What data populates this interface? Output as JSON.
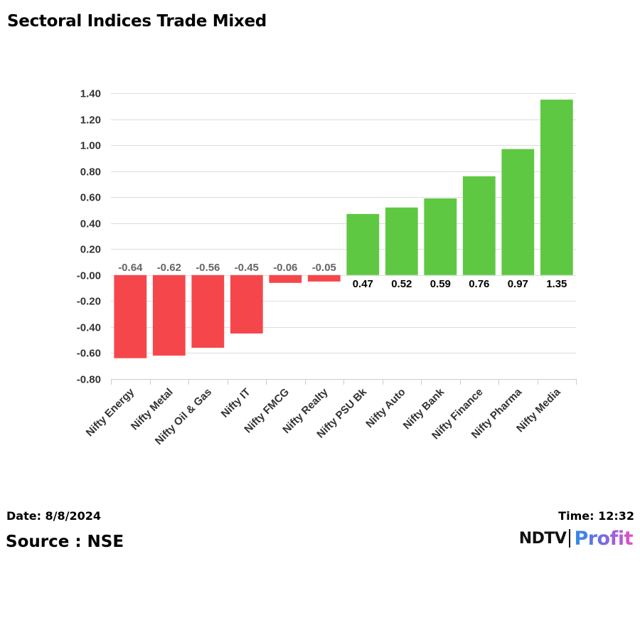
{
  "title": "Sectoral Indices Trade Mixed",
  "footer": {
    "date": "Date: 8/8/2024",
    "time": "Time: 12:32",
    "source": "Source : NSE"
  },
  "logo": {
    "brand": "NDTV",
    "sub": "Profit"
  },
  "colors": {
    "negative": "#f5474b",
    "positive": "#5fc843",
    "grid": "#dddddd",
    "negative_label": "#666666",
    "positive_label": "#000000"
  },
  "chart_data": {
    "type": "bar",
    "title": "Sectoral Indices Trade Mixed",
    "xlabel": "",
    "ylabel": "",
    "ylim": [
      -0.8,
      1.4
    ],
    "yticks": [
      1.4,
      1.2,
      1.0,
      0.8,
      0.6,
      0.4,
      0.2,
      0.0,
      -0.2,
      -0.4,
      -0.6,
      -0.8
    ],
    "ytick_labels": [
      "1.40",
      "1.20",
      "1.00",
      "0.80",
      "0.60",
      "0.40",
      "0.20",
      "-0.00",
      "-0.20",
      "-0.40",
      "-0.60",
      "-0.80"
    ],
    "grid": true,
    "categories": [
      "Nifty Energy",
      "Nifty Metal",
      "Nifty Oil & Gas",
      "Nifty IT",
      "Nifty FMCG",
      "Nifty Realty",
      "Nifty PSU Bk",
      "Nifty Auto",
      "Nifty Bank",
      "Nifty Finance",
      "Nifty Pharma",
      "Nifty Media"
    ],
    "values": [
      -0.64,
      -0.62,
      -0.56,
      -0.45,
      -0.06,
      -0.05,
      0.47,
      0.52,
      0.59,
      0.76,
      0.97,
      1.35
    ],
    "value_labels": [
      "-0.64",
      "-0.62",
      "-0.56",
      "-0.45",
      "-0.06",
      "-0.05",
      "0.47",
      "0.52",
      "0.59",
      "0.76",
      "0.97",
      "1.35"
    ]
  }
}
